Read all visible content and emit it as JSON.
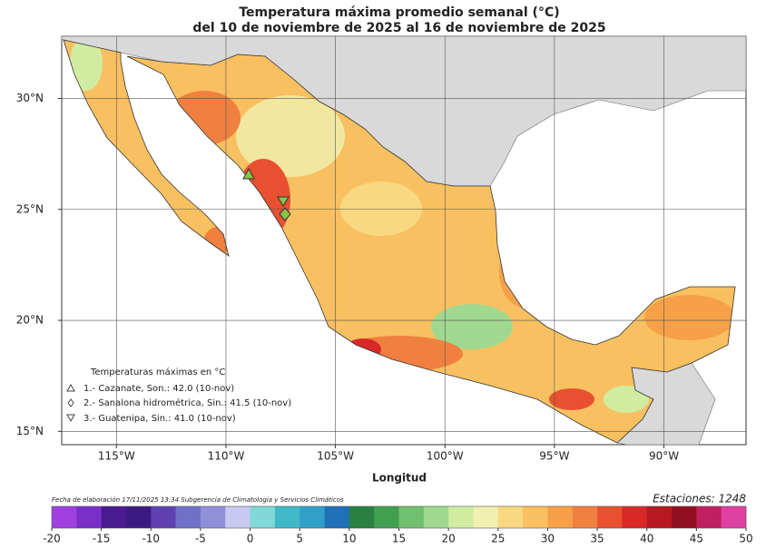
{
  "title": [
    "Temperatura máxima promedio semanal (°C)",
    "del 10 de noviembre de 2025 al 16 de noviembre de 2025"
  ],
  "map": {
    "xlabel": "Longitud",
    "xlim": [
      -117.5,
      -86.25
    ],
    "ylim": [
      14.4,
      32.8
    ],
    "xticks": [
      {
        "value": -115,
        "label": "115°W"
      },
      {
        "value": -110,
        "label": "110°W"
      },
      {
        "value": -105,
        "label": "105°W"
      },
      {
        "value": -100,
        "label": "100°W"
      },
      {
        "value": -95,
        "label": "95°W"
      },
      {
        "value": -90,
        "label": "90°W"
      }
    ],
    "yticks": [
      {
        "value": 15,
        "label": "15°N"
      },
      {
        "value": 20,
        "label": "20°N"
      },
      {
        "value": 25,
        "label": "25°N"
      },
      {
        "value": 30,
        "label": "30°N"
      }
    ],
    "grid": true
  },
  "legend": {
    "title": "Temperaturas máximas en °C",
    "items": [
      "1.- Cazanate, Son.: 42.0 (10-nov)",
      "2.- Sanalona hidrométrica, Sin.: 41.5 (10-nov)",
      "3.- Guatenipa, Sin.: 41.0 (10-nov)"
    ]
  },
  "footer": {
    "note": "Fecha de elaboración 17/11/2025 13:34 Subgerencia de Climatología y Servicios Climáticos",
    "stations": "Estaciones: 1248"
  },
  "colorbar": {
    "range": [
      -20,
      50
    ],
    "ticks": [
      -20,
      -15,
      -10,
      -5,
      0,
      5,
      10,
      15,
      20,
      25,
      30,
      35,
      40,
      45,
      50
    ],
    "colors": [
      "#a040e0",
      "#7a30c8",
      "#4a1a90",
      "#3a1a80",
      "#6040b0",
      "#7070c8",
      "#9090d8",
      "#c8c8f0",
      "#80d8d8",
      "#40b8c8",
      "#30a0c8",
      "#2070b8",
      "#2a8040",
      "#40a050",
      "#70c070",
      "#a0d890",
      "#d0eca0",
      "#f0f0b0",
      "#f8d880",
      "#f8c060",
      "#f6a048",
      "#f08040",
      "#e85030",
      "#d82828",
      "#b81820",
      "#901020",
      "#c02060",
      "#e040a0"
    ]
  }
}
